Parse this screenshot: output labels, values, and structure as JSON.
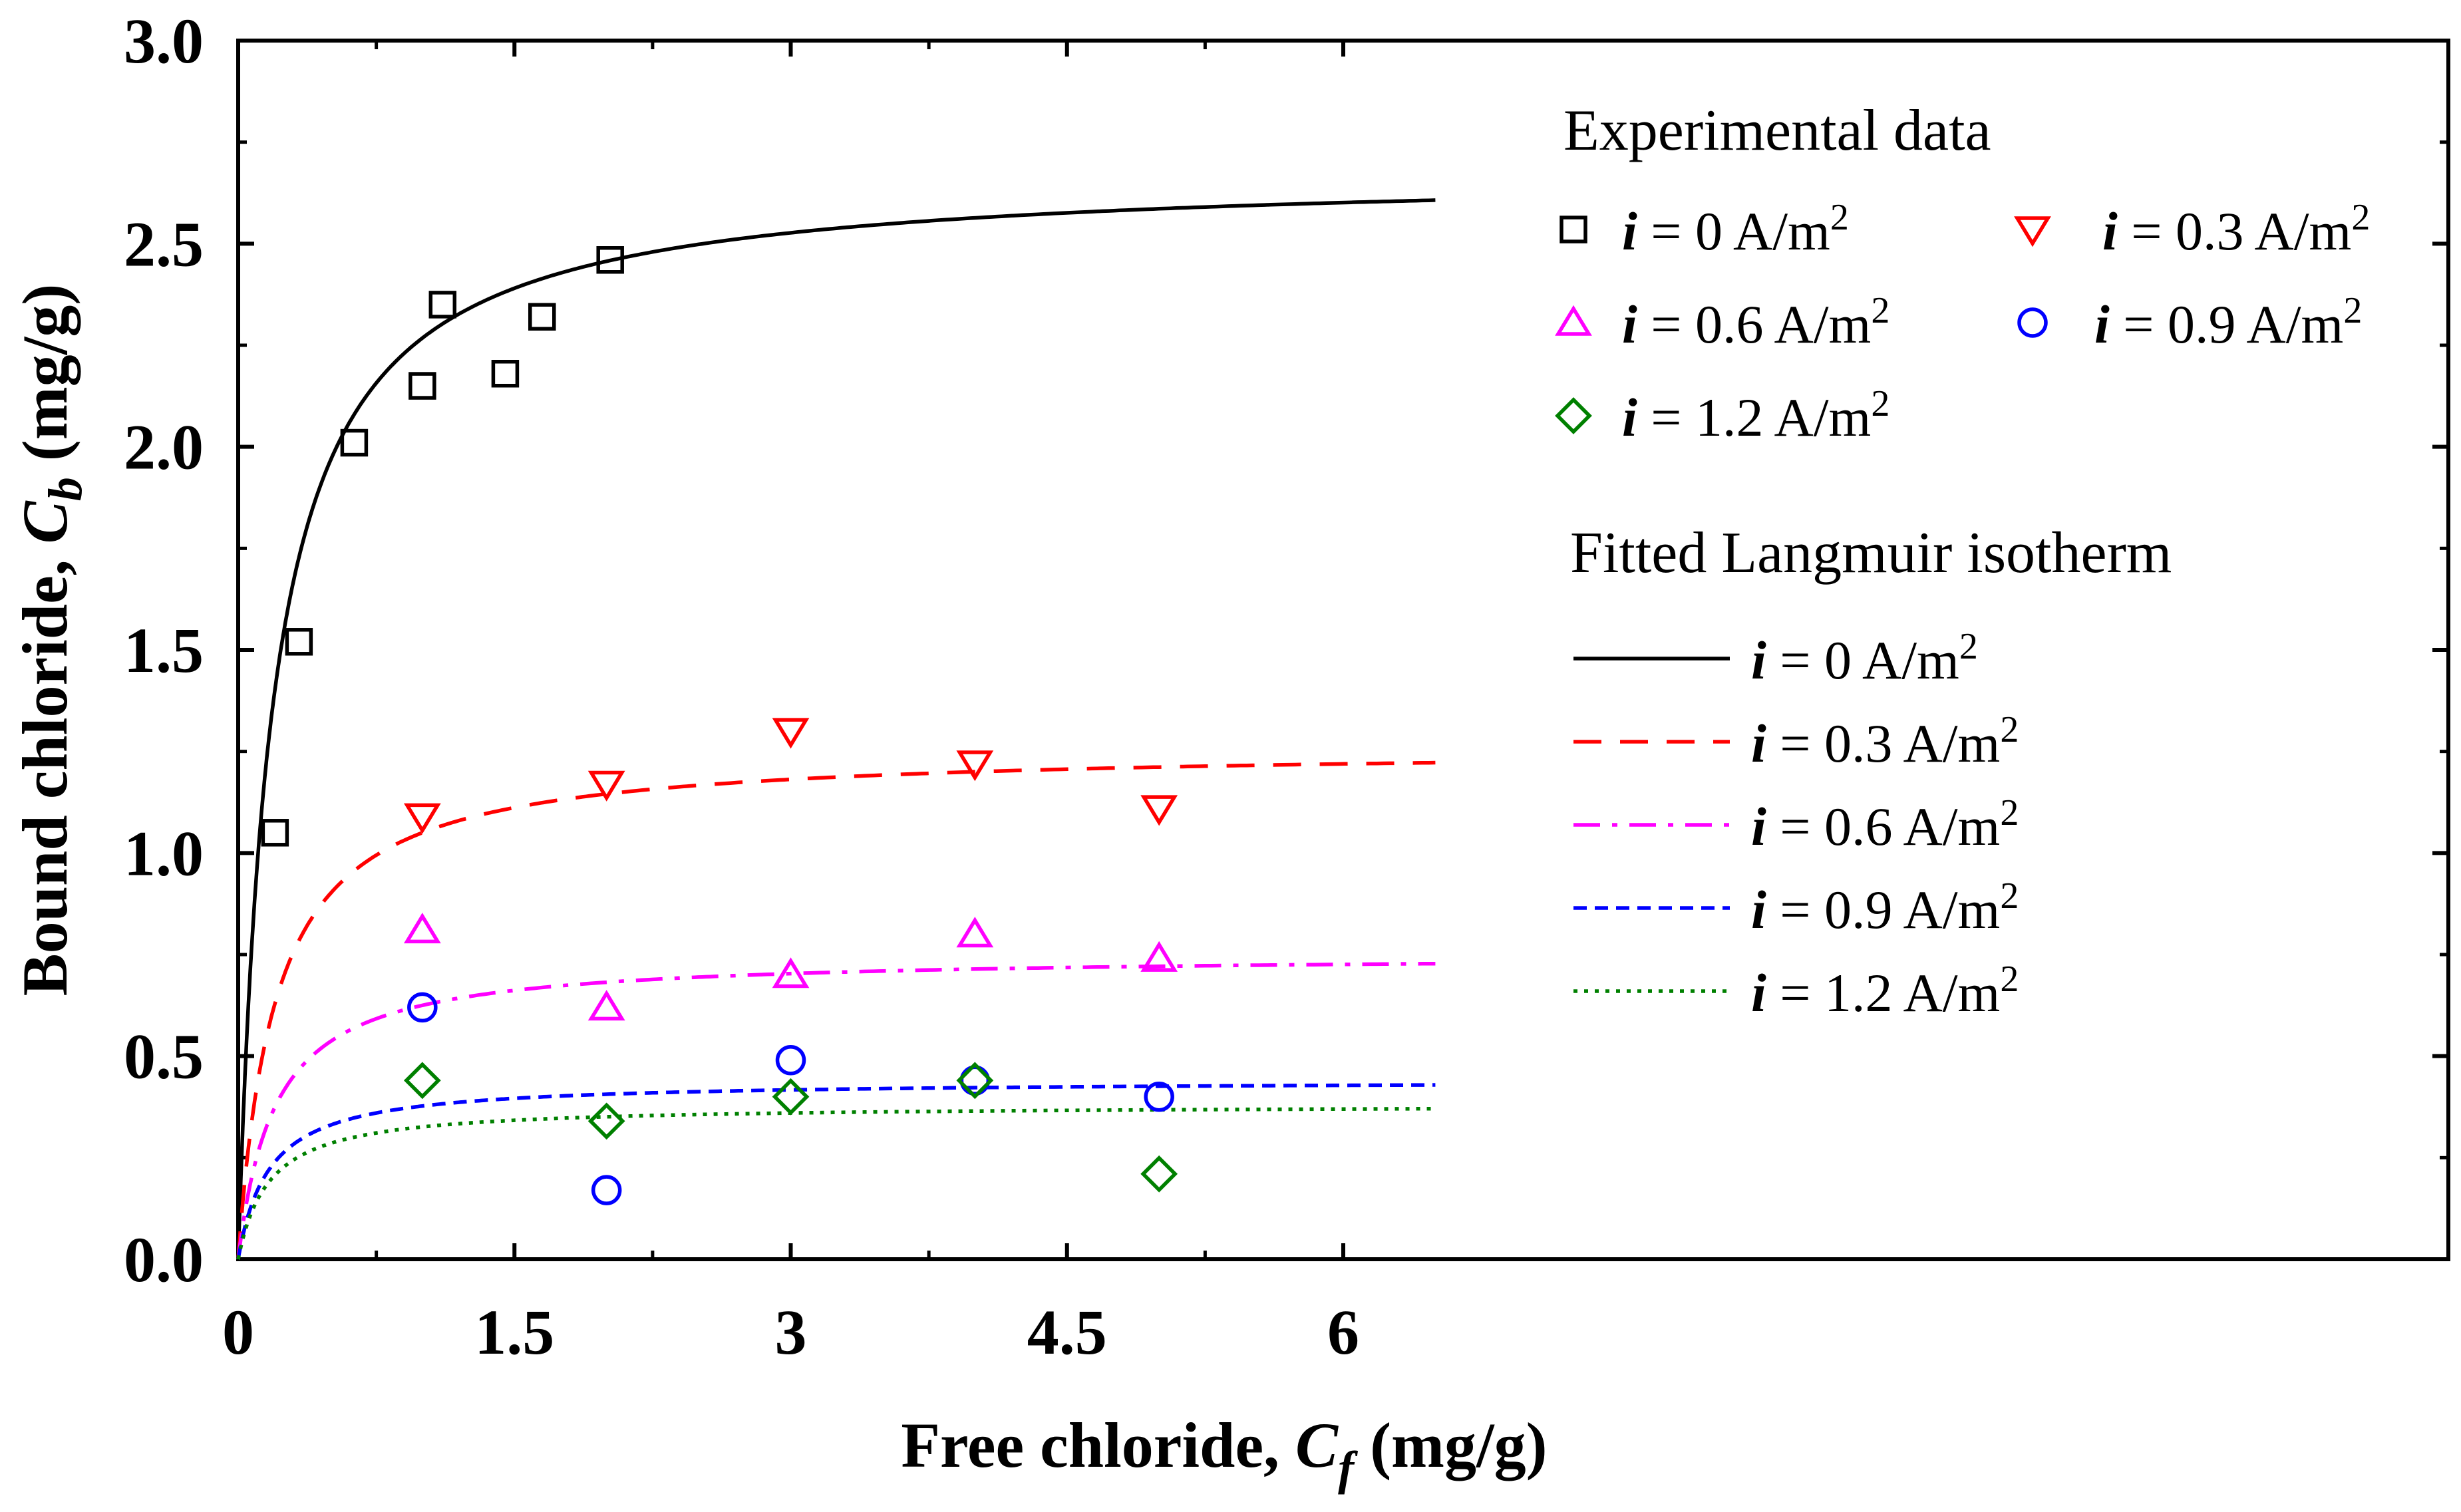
{
  "chart_data": {
    "type": "scatter",
    "xlabel_main": "Free chloride, ",
    "xlabel_var": "C",
    "xlabel_sub": "f",
    "xlabel_unit": " (mg/g)",
    "ylabel_main": "Bound chloride, ",
    "ylabel_var": "C",
    "ylabel_sub": "b",
    "ylabel_unit": " (mg/g)",
    "xlim": [
      0,
      12.0
    ],
    "ylim": [
      0,
      3.0
    ],
    "xticks": [
      0,
      1.5,
      3,
      4.5,
      6
    ],
    "xtick_labels": [
      "0",
      "1.5",
      "3",
      "4.5",
      "6"
    ],
    "yticks": [
      0,
      0.5,
      1.0,
      1.5,
      2.0,
      2.5,
      3.0
    ],
    "ytick_labels": [
      "0.0",
      "0.5",
      "1.0",
      "1.5",
      "2.0",
      "2.5",
      "3.0"
    ],
    "legend_exp_title": "Experimental data",
    "legend_fit_title": "Fitted Langmuir isotherm",
    "legend_var": "i",
    "series": [
      {
        "name": "i = 0 A/m2",
        "current": "0",
        "legend_text": " = 0  A/m",
        "sup": "2",
        "color": "#000000",
        "marker": "square",
        "dash": "solid",
        "x": [
          0.2,
          0.33,
          0.63,
          1.0,
          1.11,
          1.45,
          1.65,
          2.02
        ],
        "y": [
          1.05,
          1.52,
          2.01,
          2.15,
          2.35,
          2.18,
          2.32,
          2.46
        ],
        "fit": {
          "qmax": 2.68,
          "K": 5.5
        }
      },
      {
        "name": "i = 0.3 A/m2",
        "current": "0.3",
        "legend_text": " = 0.3 A/m",
        "sup": "2",
        "color": "#ff0000",
        "marker": "triangle-down",
        "dash": "long-dash",
        "x": [
          1.0,
          2.0,
          3.0,
          4.0,
          5.0
        ],
        "y": [
          1.09,
          1.17,
          1.3,
          1.22,
          1.11
        ],
        "fit": {
          "qmax": 1.26,
          "K": 5.0
        }
      },
      {
        "name": "i = 0.6 A/m2",
        "current": "0.6",
        "legend_text": " = 0.6 A/m",
        "sup": "2",
        "color": "#ff00ff",
        "marker": "triangle-up",
        "dash": "dash-dot",
        "x": [
          1.0,
          2.0,
          3.0,
          4.0,
          5.0
        ],
        "y": [
          0.81,
          0.62,
          0.7,
          0.8,
          0.74
        ],
        "fit": {
          "qmax": 0.75,
          "K": 5.0
        }
      },
      {
        "name": "i = 0.9 A/m2",
        "current": "0.9",
        "legend_text": " = 0.9 A/m",
        "sup": "2",
        "color": "#0000ff",
        "marker": "circle",
        "dash": "short-dash",
        "x": [
          1.0,
          2.0,
          3.0,
          4.0,
          5.0
        ],
        "y": [
          0.62,
          0.17,
          0.49,
          0.44,
          0.4
        ],
        "fit": {
          "qmax": 0.44,
          "K": 6.0
        }
      },
      {
        "name": "i = 1.2 A/m2",
        "current": "1.2",
        "legend_text": " = 1.2 A/m",
        "sup": "2",
        "color": "#008000",
        "marker": "diamond",
        "dash": "dotted",
        "x": [
          1.0,
          2.0,
          3.0,
          4.0,
          5.0
        ],
        "y": [
          0.44,
          0.34,
          0.4,
          0.44,
          0.21
        ],
        "fit": {
          "qmax": 0.38,
          "K": 6.0
        }
      }
    ]
  }
}
